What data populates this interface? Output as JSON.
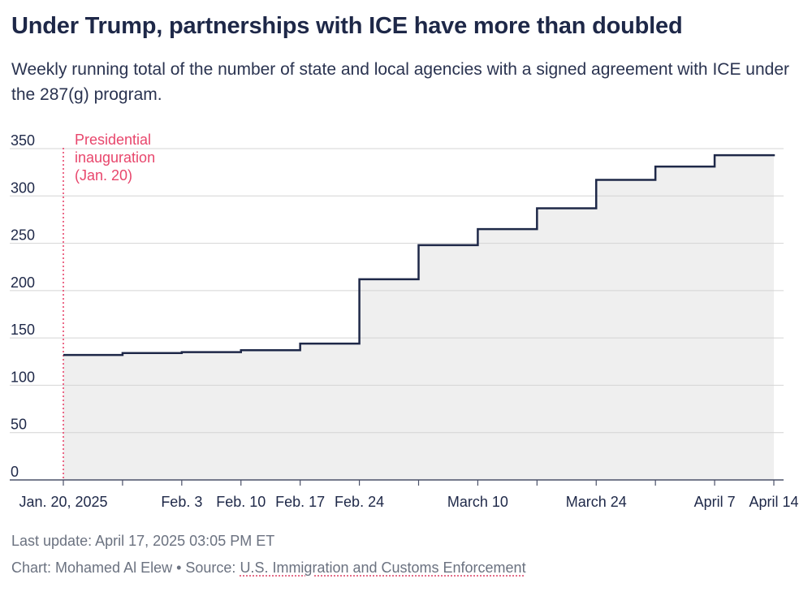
{
  "title": "Under Trump, partnerships with ICE have more than doubled",
  "subtitle": "Weekly running total of the number of state and local agencies with a signed agreement with ICE under the 287(g) program.",
  "colors": {
    "line": "#1e2848",
    "area": "#efefef",
    "grid": "#d4d4d4",
    "annotation": "#e8466c",
    "text": "#1e2848",
    "muted": "#6b7280"
  },
  "chart_data": {
    "type": "area",
    "step": true,
    "x_type": "date",
    "x": [
      "2025-01-20",
      "2025-01-27",
      "2025-02-03",
      "2025-02-10",
      "2025-02-17",
      "2025-02-24",
      "2025-03-03",
      "2025-03-10",
      "2025-03-17",
      "2025-03-24",
      "2025-03-31",
      "2025-04-07",
      "2025-04-14"
    ],
    "y": [
      132,
      134,
      135,
      137,
      144,
      212,
      248,
      265,
      287,
      317,
      331,
      343,
      344
    ],
    "ylim": [
      0,
      350
    ],
    "yticks": [
      "0",
      "50",
      "100",
      "150",
      "200",
      "250",
      "300",
      "350"
    ],
    "xlabels": [
      {
        "date": "2025-01-20",
        "label": "Jan. 20, 2025"
      },
      {
        "date": "2025-02-03",
        "label": "Feb. 3"
      },
      {
        "date": "2025-02-10",
        "label": "Feb. 10"
      },
      {
        "date": "2025-02-17",
        "label": "Feb. 17"
      },
      {
        "date": "2025-02-24",
        "label": "Feb. 24"
      },
      {
        "date": "2025-03-10",
        "label": "March 10"
      },
      {
        "date": "2025-03-24",
        "label": "March 24"
      },
      {
        "date": "2025-04-07",
        "label": "April 7"
      },
      {
        "date": "2025-04-14",
        "label": "April 14"
      }
    ],
    "annotation": {
      "date": "2025-01-20",
      "lines": [
        "Presidential",
        "inauguration",
        "(Jan. 20)"
      ]
    },
    "grid": true
  },
  "footer": {
    "update": "Last update: April 17, 2025 03:05 PM ET",
    "credit": "Chart: Mohamed Al Elew • Source: ",
    "source": "U.S. Immigration and Customs Enforcement"
  }
}
